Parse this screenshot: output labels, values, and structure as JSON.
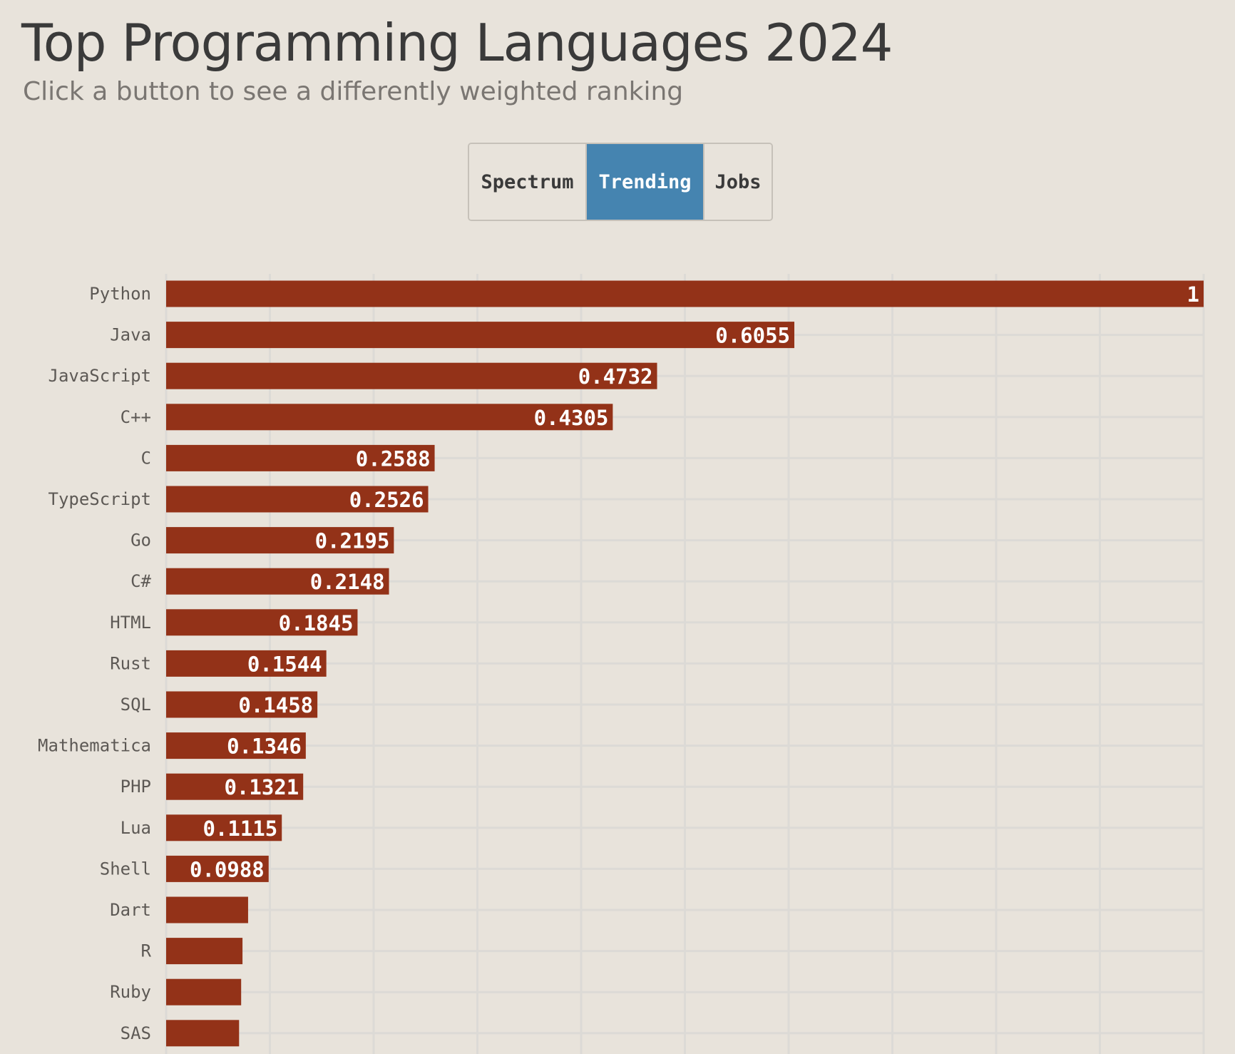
{
  "header": {
    "title": "Top Programming Languages 2024",
    "subtitle": "Click a button to see a differently weighted ranking"
  },
  "buttons": [
    {
      "label": "Spectrum",
      "active": false
    },
    {
      "label": "Trending",
      "active": true
    },
    {
      "label": "Jobs",
      "active": false
    }
  ],
  "colors": {
    "bar": "#933218",
    "grid": "#dcdad6",
    "active_button": "#4584b0",
    "background": "#e8e3db"
  },
  "chart_data": {
    "type": "bar",
    "orientation": "horizontal",
    "title": "Top Programming Languages 2024",
    "xlim": [
      0,
      1
    ],
    "grid": true,
    "categories": [
      "Python",
      "Java",
      "JavaScript",
      "C++",
      "C",
      "TypeScript",
      "Go",
      "C#",
      "HTML",
      "Rust",
      "SQL",
      "Mathematica",
      "PHP",
      "Lua",
      "Shell",
      "Dart",
      "R",
      "Ruby",
      "SAS"
    ],
    "values": [
      1,
      0.6055,
      0.4732,
      0.4305,
      0.2588,
      0.2526,
      0.2195,
      0.2148,
      0.1845,
      0.1544,
      0.1458,
      0.1346,
      0.1321,
      0.1115,
      0.0988,
      0.079,
      0.0736,
      0.0723,
      0.0703
    ],
    "data_labels": [
      "1",
      "0.6055",
      "0.4732",
      "0.4305",
      "0.2588",
      "0.2526",
      "0.2195",
      "0.2148",
      "0.1845",
      "0.1544",
      "0.1458",
      "0.1346",
      "0.1321",
      "0.1115",
      "0.0988",
      "",
      "",
      "",
      ""
    ]
  }
}
